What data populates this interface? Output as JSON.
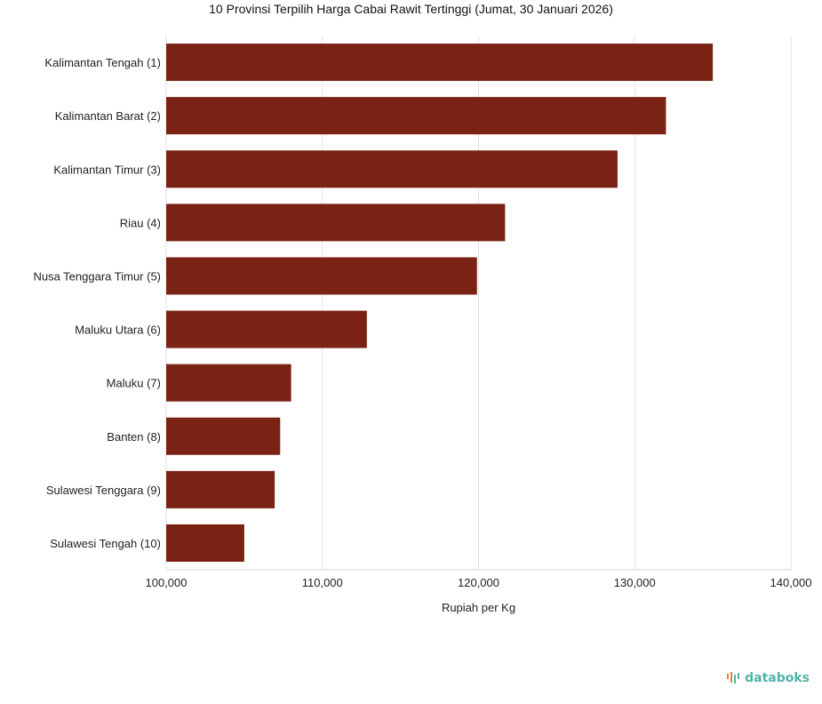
{
  "chart_data": {
    "type": "bar",
    "orientation": "horizontal",
    "title": "10 Provinsi Terpilih Harga Cabai Rawit Tertinggi (Jumat, 30 Januari 2026)",
    "xlabel": "Rupiah per Kg",
    "ylabel": "",
    "xlim": [
      100000,
      140000
    ],
    "x_ticks": [
      100000,
      110000,
      120000,
      130000,
      140000
    ],
    "x_tick_labels": [
      "100,000",
      "110,000",
      "120,000",
      "130,000",
      "140,000"
    ],
    "grid": "vertical",
    "legend": "none",
    "bar_color": "#7a2214",
    "categories": [
      "Kalimantan Tengah (1)",
      "Kalimantan Barat (2)",
      "Kalimantan Timur (3)",
      "Riau (4)",
      "Nusa Tenggara Timur (5)",
      "Maluku Utara (6)",
      "Maluku (7)",
      "Banten (8)",
      "Sulawesi Tenggara (9)",
      "Sulawesi Tengah (10)"
    ],
    "values": [
      135000,
      132000,
      128900,
      121700,
      119900,
      112850,
      108000,
      107300,
      106950,
      105000
    ]
  },
  "brand": {
    "logo_text": "databoks",
    "logo_icon": "databoks-logo-icon"
  }
}
